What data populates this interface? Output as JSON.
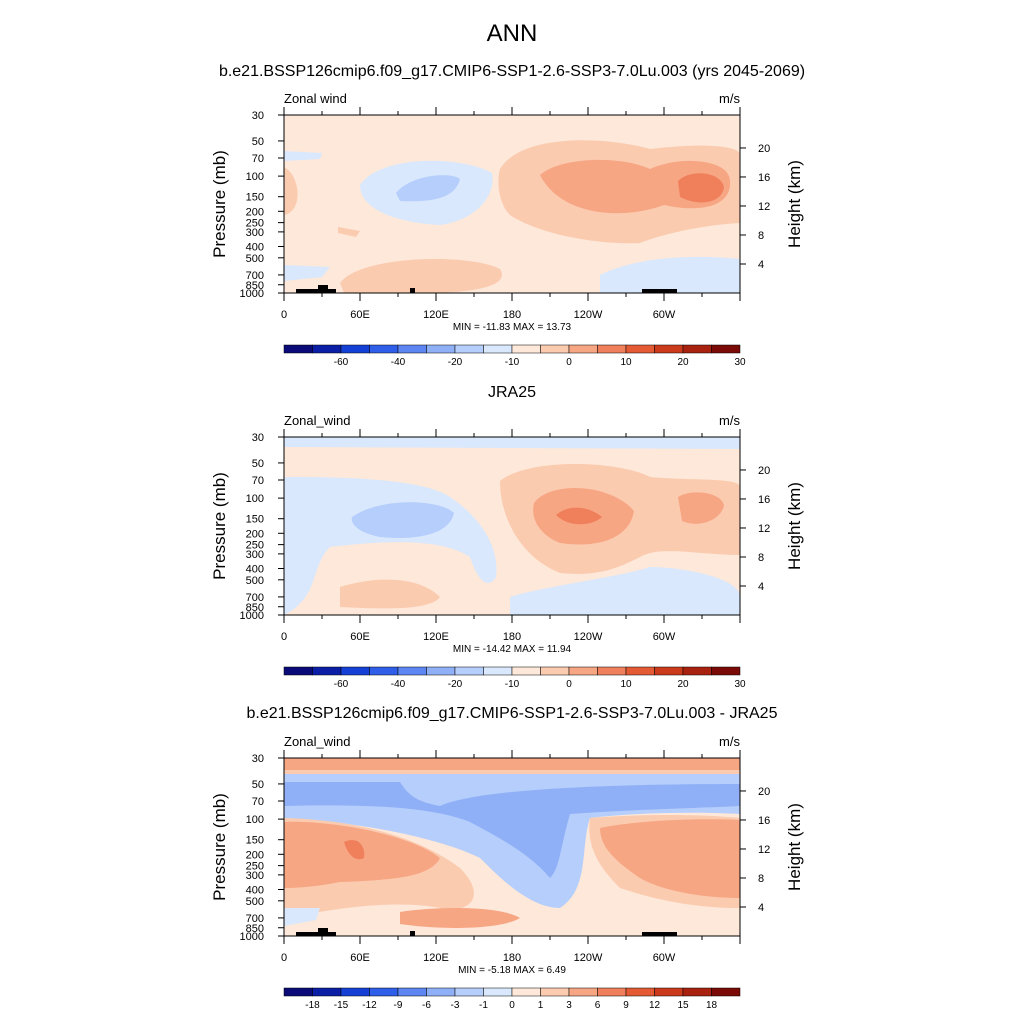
{
  "title": "ANN",
  "colors": {
    "full": [
      "#0a0a78",
      "#0b1fa6",
      "#1540d6",
      "#2f5fe8",
      "#5e86f2",
      "#8fb0f7",
      "#b6cefb",
      "#d9e8fd",
      "#fde8d9",
      "#fbcbb0",
      "#f7a684",
      "#f0805c",
      "#e35a34",
      "#cc3a1c",
      "#a8220f",
      "#7a0a05"
    ],
    "diff": [
      "#0a0a78",
      "#0b1fa6",
      "#1540d6",
      "#2f5fe8",
      "#5e86f2",
      "#8fb0f7",
      "#b6cefb",
      "#d9e8fd",
      "#fde8d9",
      "#fbcbb0",
      "#f7a684",
      "#f0805c",
      "#e35a34",
      "#cc3a1c",
      "#a8220f",
      "#7a0a05"
    ]
  },
  "panels": [
    {
      "id": "model",
      "title": "b.e21.BSSP126cmip6.f09_g17.CMIP6-SSP1-2.6-SSP3-7.0Lu.003 (yrs 2045-2069)",
      "left_label": "Zonal wind",
      "right_label": "m/s",
      "stats": "MIN = -11.83  MAX =  13.73"
    },
    {
      "id": "obs",
      "title": "JRA25",
      "left_label": "Zonal_wind",
      "right_label": "m/s",
      "stats": "MIN = -14.42  MAX =  11.94"
    },
    {
      "id": "diff",
      "title": "b.e21.BSSP126cmip6.f09_g17.CMIP6-SSP1-2.6-SSP3-7.0Lu.003 - JRA25",
      "left_label": "Zonal_wind",
      "right_label": "m/s",
      "stats": "MIN =  -5.18  MAX =   6.49"
    }
  ],
  "chart_data": [
    {
      "type": "heatmap",
      "title": "b.e21.BSSP126cmip6.f09_g17.CMIP6-SSP1-2.6-SSP3-7.0Lu.003 (yrs 2045-2069)",
      "variable": "Zonal wind",
      "units": "m/s",
      "ylabel": "Pressure (mb)",
      "ylabel_right": "Height (km)",
      "x_ticks": [
        "0",
        "60E",
        "120E",
        "180",
        "120W",
        "60W"
      ],
      "y_ticks": [
        "30",
        "50",
        "70",
        "100",
        "150",
        "200",
        "250",
        "300",
        "400",
        "500",
        "700",
        "850",
        "1000"
      ],
      "y_ticks_right": [
        "20",
        "16",
        "12",
        "8",
        "4"
      ],
      "min": -11.83,
      "max": 13.73,
      "colorbar_levels": [
        "-60",
        "-40",
        "-20",
        "-10",
        "0",
        "10",
        "20",
        "30"
      ]
    },
    {
      "type": "heatmap",
      "title": "JRA25",
      "variable": "Zonal_wind",
      "units": "m/s",
      "ylabel": "Pressure (mb)",
      "ylabel_right": "Height (km)",
      "x_ticks": [
        "0",
        "60E",
        "120E",
        "180",
        "120W",
        "60W"
      ],
      "y_ticks": [
        "30",
        "50",
        "70",
        "100",
        "150",
        "200",
        "250",
        "300",
        "400",
        "500",
        "700",
        "850",
        "1000"
      ],
      "y_ticks_right": [
        "20",
        "16",
        "12",
        "8",
        "4"
      ],
      "min": -14.42,
      "max": 11.94,
      "colorbar_levels": [
        "-60",
        "-40",
        "-20",
        "-10",
        "0",
        "10",
        "20",
        "30"
      ]
    },
    {
      "type": "heatmap",
      "title": "b.e21.BSSP126cmip6.f09_g17.CMIP6-SSP1-2.6-SSP3-7.0Lu.003 - JRA25",
      "variable": "Zonal_wind",
      "units": "m/s",
      "ylabel": "Pressure (mb)",
      "ylabel_right": "Height (km)",
      "x_ticks": [
        "0",
        "60E",
        "120E",
        "180",
        "120W",
        "60W"
      ],
      "y_ticks": [
        "30",
        "50",
        "70",
        "100",
        "150",
        "200",
        "250",
        "300",
        "400",
        "500",
        "700",
        "850",
        "1000"
      ],
      "y_ticks_right": [
        "20",
        "16",
        "12",
        "8",
        "4"
      ],
      "min": -5.18,
      "max": 6.49,
      "colorbar_levels": [
        "-18",
        "-15",
        "-12",
        "-9",
        "-6",
        "-3",
        "-1",
        "0",
        "1",
        "3",
        "6",
        "9",
        "12",
        "15",
        "18"
      ]
    }
  ]
}
